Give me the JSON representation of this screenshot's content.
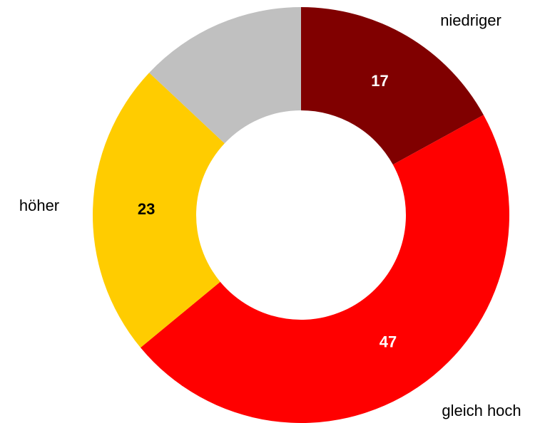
{
  "chart_data": {
    "type": "donut",
    "categories": [
      "niedriger",
      "gleich hoch",
      "höher",
      null
    ],
    "values": [
      17,
      47,
      23,
      13
    ],
    "colors": [
      "#800000",
      "#ff0000",
      "#ffcc00",
      "#c0c0c0"
    ],
    "label_colors": [
      "#ffffff",
      "#ffffff",
      "#000000",
      "#000000"
    ]
  }
}
